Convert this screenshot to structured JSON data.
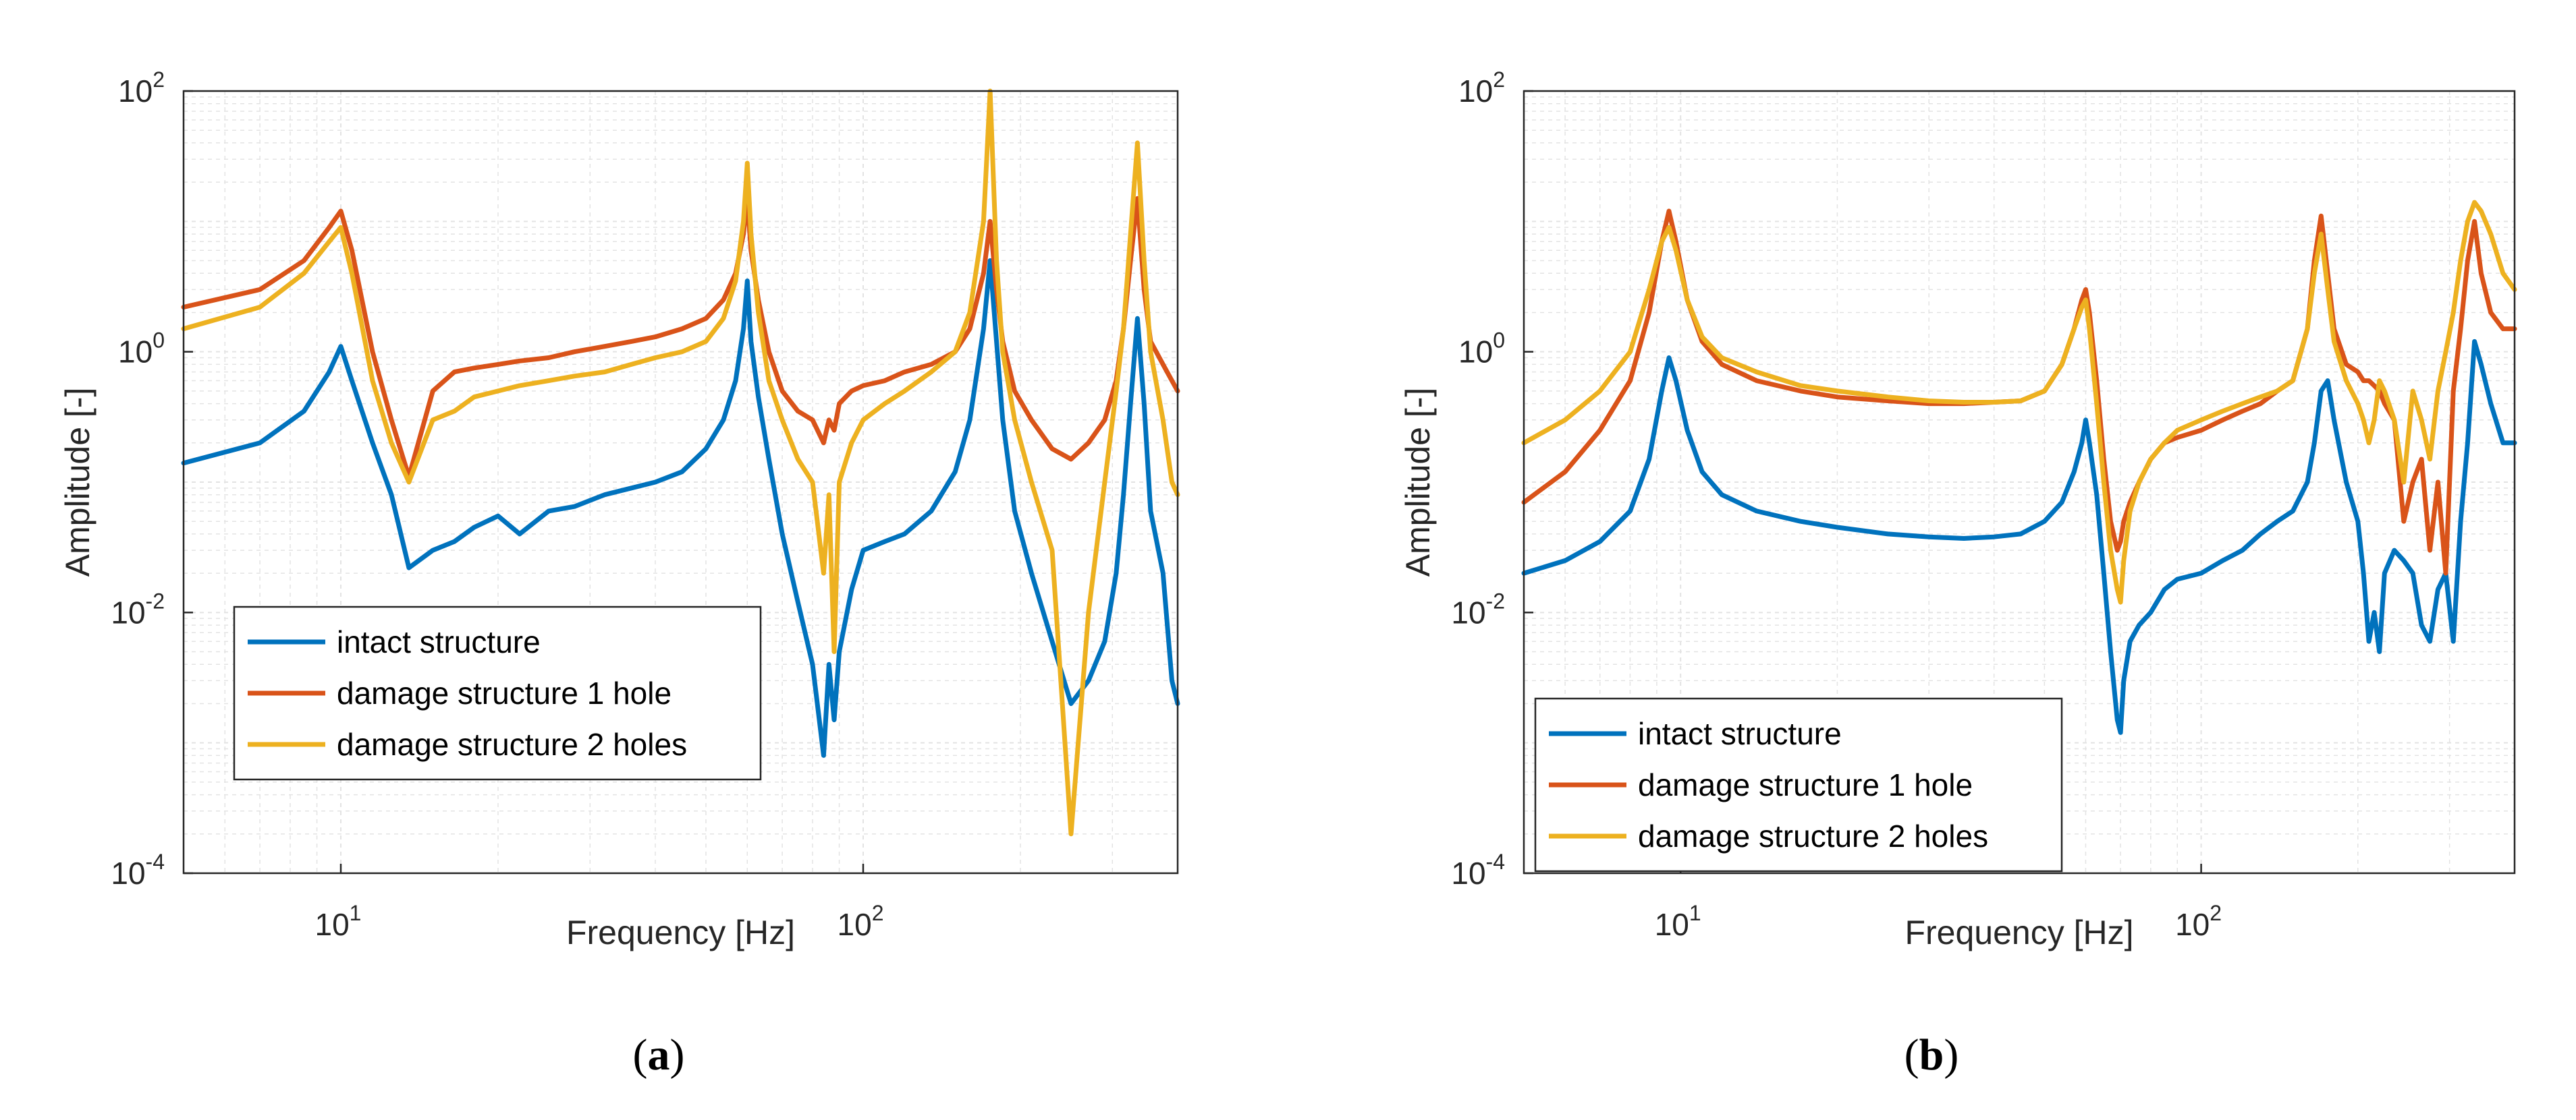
{
  "colors": {
    "intact": "#0072BD",
    "damage1": "#D95319",
    "damage2": "#EDB120",
    "grid": "#e3e3e3",
    "axis": "#262626"
  },
  "chart_data": [
    {
      "type": "line",
      "panel_label": "a",
      "xlabel": "Frequency [Hz]",
      "ylabel": "Amplitude [-]",
      "xscale": "log",
      "yscale": "log",
      "xlim": [
        5,
        400
      ],
      "ylim": [
        0.0001,
        100
      ],
      "x_ticks": [
        {
          "value": 10,
          "base": "10",
          "exp": "1"
        },
        {
          "value": 100,
          "base": "10",
          "exp": "2"
        }
      ],
      "y_ticks": [
        {
          "value": 0.0001,
          "base": "10",
          "exp": "-4"
        },
        {
          "value": 0.01,
          "base": "10",
          "exp": "-2"
        },
        {
          "value": 1,
          "base": "10",
          "exp": "0"
        },
        {
          "value": 100,
          "base": "10",
          "exp": "2"
        }
      ],
      "grid": true,
      "legend_position": "bottom-left",
      "series": [
        {
          "name": "intact structure",
          "color": "#0072BD",
          "x": [
            5,
            7,
            8.5,
            9.5,
            10,
            10.5,
            11.5,
            12.5,
            13.5,
            15,
            16.5,
            18,
            20,
            22,
            25,
            28,
            32,
            36,
            40,
            45,
            50,
            54,
            57,
            59,
            60,
            61,
            63,
            66,
            70,
            75,
            80,
            84,
            86,
            88,
            90,
            95,
            100,
            110,
            120,
            135,
            150,
            160,
            170,
            175,
            180,
            185,
            195,
            210,
            230,
            250,
            270,
            290,
            305,
            315,
            325,
            335,
            345,
            355,
            375,
            390,
            400
          ],
          "y": [
            0.14,
            0.2,
            0.35,
            0.7,
            1.1,
            0.6,
            0.2,
            0.08,
            0.022,
            0.03,
            0.035,
            0.045,
            0.055,
            0.04,
            0.06,
            0.065,
            0.08,
            0.09,
            0.1,
            0.12,
            0.18,
            0.3,
            0.6,
            1.5,
            3.5,
            1.2,
            0.45,
            0.15,
            0.04,
            0.012,
            0.004,
            0.0008,
            0.004,
            0.0015,
            0.005,
            0.015,
            0.03,
            0.035,
            0.04,
            0.06,
            0.12,
            0.3,
            1.5,
            5.0,
            1.2,
            0.3,
            0.06,
            0.02,
            0.006,
            0.002,
            0.003,
            0.006,
            0.02,
            0.08,
            0.4,
            1.8,
            0.4,
            0.06,
            0.02,
            0.003,
            0.002
          ]
        },
        {
          "name": "damage structure 1 hole",
          "color": "#D95319",
          "x": [
            5,
            7,
            8.5,
            9.5,
            10,
            10.5,
            11.5,
            12.5,
            13.5,
            15,
            16.5,
            18,
            20,
            22,
            25,
            28,
            32,
            36,
            40,
            45,
            50,
            54,
            57,
            59,
            60,
            61,
            63,
            66,
            70,
            75,
            80,
            84,
            86,
            88,
            90,
            95,
            100,
            110,
            120,
            135,
            150,
            160,
            170,
            175,
            180,
            185,
            195,
            210,
            230,
            250,
            270,
            290,
            305,
            315,
            325,
            335,
            345,
            355,
            375,
            390,
            400
          ],
          "y": [
            2.2,
            3.0,
            5.0,
            9.0,
            12.0,
            6.0,
            1.0,
            0.3,
            0.11,
            0.5,
            0.7,
            0.75,
            0.8,
            0.85,
            0.9,
            1.0,
            1.1,
            1.2,
            1.3,
            1.5,
            1.8,
            2.5,
            4.0,
            8.0,
            15.0,
            6.0,
            2.5,
            1.0,
            0.5,
            0.35,
            0.3,
            0.2,
            0.3,
            0.25,
            0.4,
            0.5,
            0.55,
            0.6,
            0.7,
            0.8,
            1.0,
            1.5,
            4.0,
            10.0,
            3.0,
            1.2,
            0.5,
            0.3,
            0.18,
            0.15,
            0.2,
            0.3,
            0.6,
            1.5,
            5.0,
            15.0,
            3.0,
            1.2,
            0.8,
            0.6,
            0.5
          ]
        },
        {
          "name": "damage structure 2 holes",
          "color": "#EDB120",
          "x": [
            5,
            7,
            8.5,
            9.5,
            10,
            10.5,
            11.5,
            12.5,
            13.5,
            15,
            16.5,
            18,
            20,
            22,
            25,
            28,
            32,
            36,
            40,
            45,
            50,
            54,
            57,
            59,
            60,
            61,
            63,
            66,
            70,
            75,
            80,
            84,
            86,
            88,
            90,
            95,
            100,
            110,
            120,
            135,
            150,
            160,
            170,
            175,
            180,
            185,
            195,
            210,
            230,
            250,
            270,
            290,
            305,
            315,
            325,
            335,
            345,
            355,
            375,
            390,
            400
          ],
          "y": [
            1.5,
            2.2,
            4.0,
            7.0,
            9.0,
            4.0,
            0.6,
            0.2,
            0.1,
            0.3,
            0.35,
            0.45,
            0.5,
            0.55,
            0.6,
            0.65,
            0.7,
            0.8,
            0.9,
            1.0,
            1.2,
            1.8,
            3.5,
            10.0,
            28.0,
            8.0,
            2.0,
            0.6,
            0.3,
            0.15,
            0.1,
            0.02,
            0.08,
            0.005,
            0.1,
            0.2,
            0.3,
            0.4,
            0.5,
            0.7,
            1.0,
            2.0,
            10.0,
            100.0,
            5.0,
            1.0,
            0.3,
            0.1,
            0.03,
            0.0002,
            0.01,
            0.1,
            0.5,
            1.5,
            8.0,
            40.0,
            5.0,
            1.0,
            0.3,
            0.1,
            0.08
          ]
        }
      ]
    },
    {
      "type": "line",
      "panel_label": "b",
      "xlabel": "Frequency [Hz]",
      "ylabel": "Amplitude [-]",
      "xscale": "log",
      "yscale": "log",
      "xlim": [
        5,
        400
      ],
      "ylim": [
        0.0001,
        100
      ],
      "x_ticks": [
        {
          "value": 10,
          "base": "10",
          "exp": "1"
        },
        {
          "value": 100,
          "base": "10",
          "exp": "2"
        }
      ],
      "y_ticks": [
        {
          "value": 0.0001,
          "base": "10",
          "exp": "-4"
        },
        {
          "value": 0.01,
          "base": "10",
          "exp": "-2"
        },
        {
          "value": 1,
          "base": "10",
          "exp": "0"
        },
        {
          "value": 100,
          "base": "10",
          "exp": "2"
        }
      ],
      "grid": true,
      "legend_position": "bottom-left",
      "series": [
        {
          "name": "intact structure",
          "color": "#0072BD",
          "x": [
            5,
            6,
            7,
            8,
            8.7,
            9.2,
            9.5,
            9.8,
            10.3,
            11,
            12,
            14,
            17,
            20,
            25,
            30,
            35,
            40,
            45,
            50,
            54,
            57,
            59,
            60,
            61,
            63,
            65,
            67,
            69,
            70,
            71,
            73,
            76,
            80,
            85,
            90,
            100,
            110,
            120,
            130,
            140,
            150,
            160,
            165,
            170,
            175,
            180,
            190,
            200,
            205,
            210,
            215,
            220,
            225,
            235,
            245,
            255,
            265,
            275,
            285,
            295,
            305,
            315,
            325,
            335,
            345,
            360,
            380,
            400
          ],
          "y": [
            0.02,
            0.025,
            0.035,
            0.06,
            0.15,
            0.5,
            0.9,
            0.6,
            0.25,
            0.12,
            0.08,
            0.06,
            0.05,
            0.045,
            0.04,
            0.038,
            0.037,
            0.038,
            0.04,
            0.05,
            0.07,
            0.12,
            0.2,
            0.3,
            0.2,
            0.08,
            0.02,
            0.005,
            0.0015,
            0.0012,
            0.003,
            0.006,
            0.008,
            0.01,
            0.015,
            0.018,
            0.02,
            0.025,
            0.03,
            0.04,
            0.05,
            0.06,
            0.1,
            0.2,
            0.5,
            0.6,
            0.3,
            0.1,
            0.05,
            0.02,
            0.006,
            0.01,
            0.005,
            0.02,
            0.03,
            0.025,
            0.02,
            0.008,
            0.006,
            0.015,
            0.02,
            0.006,
            0.05,
            0.2,
            1.2,
            0.8,
            0.4,
            0.2,
            0.2
          ]
        },
        {
          "name": "damage structure 1 hole",
          "color": "#D95319",
          "x": [
            5,
            6,
            7,
            8,
            8.7,
            9.2,
            9.5,
            9.8,
            10.3,
            11,
            12,
            14,
            17,
            20,
            25,
            30,
            35,
            40,
            45,
            50,
            54,
            57,
            59,
            60,
            61,
            63,
            65,
            67,
            69,
            70,
            71,
            73,
            76,
            80,
            85,
            90,
            100,
            110,
            120,
            130,
            140,
            150,
            160,
            165,
            170,
            175,
            180,
            190,
            200,
            205,
            210,
            215,
            220,
            225,
            235,
            245,
            255,
            265,
            275,
            285,
            295,
            305,
            315,
            325,
            335,
            345,
            360,
            380,
            400
          ],
          "y": [
            0.07,
            0.12,
            0.25,
            0.6,
            2.0,
            7.0,
            12.0,
            7.0,
            2.5,
            1.2,
            0.8,
            0.6,
            0.5,
            0.45,
            0.42,
            0.4,
            0.4,
            0.41,
            0.42,
            0.5,
            0.8,
            1.5,
            2.5,
            3.0,
            2.0,
            0.6,
            0.15,
            0.05,
            0.03,
            0.035,
            0.05,
            0.07,
            0.1,
            0.15,
            0.2,
            0.22,
            0.25,
            0.3,
            0.35,
            0.4,
            0.5,
            0.6,
            1.5,
            5.0,
            11.0,
            4.0,
            1.5,
            0.8,
            0.7,
            0.6,
            0.6,
            0.55,
            0.5,
            0.4,
            0.3,
            0.05,
            0.1,
            0.15,
            0.03,
            0.1,
            0.02,
            0.5,
            1.5,
            5.0,
            10.0,
            4.0,
            2.0,
            1.5,
            1.5
          ]
        },
        {
          "name": "damage structure 2 holes",
          "color": "#EDB120",
          "x": [
            5,
            6,
            7,
            8,
            8.7,
            9.2,
            9.5,
            9.8,
            10.3,
            11,
            12,
            14,
            17,
            20,
            25,
            30,
            35,
            40,
            45,
            50,
            54,
            57,
            59,
            60,
            61,
            63,
            65,
            67,
            69,
            70,
            71,
            73,
            76,
            80,
            85,
            90,
            100,
            110,
            120,
            130,
            140,
            150,
            160,
            165,
            170,
            175,
            180,
            190,
            200,
            205,
            210,
            215,
            220,
            225,
            235,
            245,
            255,
            265,
            275,
            285,
            295,
            305,
            315,
            325,
            335,
            345,
            360,
            380,
            400
          ],
          "y": [
            0.2,
            0.3,
            0.5,
            1.0,
            3.0,
            7.0,
            9.0,
            6.0,
            2.5,
            1.3,
            0.9,
            0.7,
            0.55,
            0.5,
            0.45,
            0.42,
            0.41,
            0.41,
            0.42,
            0.5,
            0.8,
            1.5,
            2.2,
            2.5,
            1.5,
            0.4,
            0.1,
            0.03,
            0.015,
            0.012,
            0.025,
            0.06,
            0.1,
            0.15,
            0.2,
            0.25,
            0.3,
            0.35,
            0.4,
            0.45,
            0.5,
            0.6,
            1.5,
            4.0,
            8.0,
            3.0,
            1.2,
            0.6,
            0.4,
            0.3,
            0.2,
            0.3,
            0.6,
            0.5,
            0.3,
            0.1,
            0.5,
            0.3,
            0.15,
            0.5,
            1.0,
            2.0,
            5.0,
            10.0,
            14.0,
            12.0,
            8.0,
            4.0,
            3.0
          ]
        }
      ]
    }
  ]
}
